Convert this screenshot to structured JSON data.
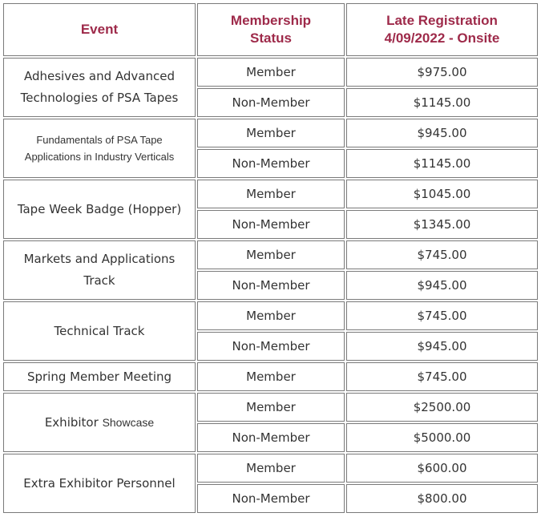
{
  "headers": {
    "event": "Event",
    "status_line1": "Membership",
    "status_line2": "Status",
    "price_line1": "Late Registration",
    "price_line2": "4/09/2022 - Onsite"
  },
  "colors": {
    "header_text": "#9e2a4a",
    "body_text": "#333333",
    "border": "#7a7a7a"
  },
  "events": [
    {
      "name_line1": "Adhesives and Advanced",
      "name_line2": "Technologies of PSA Tapes",
      "rows": [
        {
          "status": "Member",
          "price": "$975.00"
        },
        {
          "status": "Non-Member",
          "price": "$1145.00"
        }
      ]
    },
    {
      "name_line1": "Fundamentals of PSA Tape",
      "name_line2": "Applications in Industry Verticals",
      "rows": [
        {
          "status": "Member",
          "price": "$945.00"
        },
        {
          "status": "Non-Member",
          "price": "$1145.00"
        }
      ]
    },
    {
      "name_line1": "Tape Week Badge (Hopper)",
      "rows": [
        {
          "status": "Member",
          "price": "$1045.00"
        },
        {
          "status": "Non-Member",
          "price": "$1345.00"
        }
      ]
    },
    {
      "name_line1": "Markets and Applications Track",
      "rows": [
        {
          "status": "Member",
          "price": "$745.00"
        },
        {
          "status": "Non-Member",
          "price": "$945.00"
        }
      ]
    },
    {
      "name_line1": "Technical Track",
      "rows": [
        {
          "status": "Member",
          "price": "$745.00"
        },
        {
          "status": "Non-Member",
          "price": "$945.00"
        }
      ]
    },
    {
      "name_line1": "Spring Member Meeting",
      "rows": [
        {
          "status": "Member",
          "price": "$745.00"
        }
      ]
    },
    {
      "name_part1": "Exhibitor",
      "name_part2": "Showcase",
      "rows": [
        {
          "status": "Member",
          "price": "$2500.00"
        },
        {
          "status": "Non-Member",
          "price": "$5000.00"
        }
      ]
    },
    {
      "name_line1": "Extra Exhibitor Personnel",
      "rows": [
        {
          "status": "Member",
          "price": "$600.00"
        },
        {
          "status": "Non-Member",
          "price": "$800.00"
        }
      ]
    }
  ]
}
